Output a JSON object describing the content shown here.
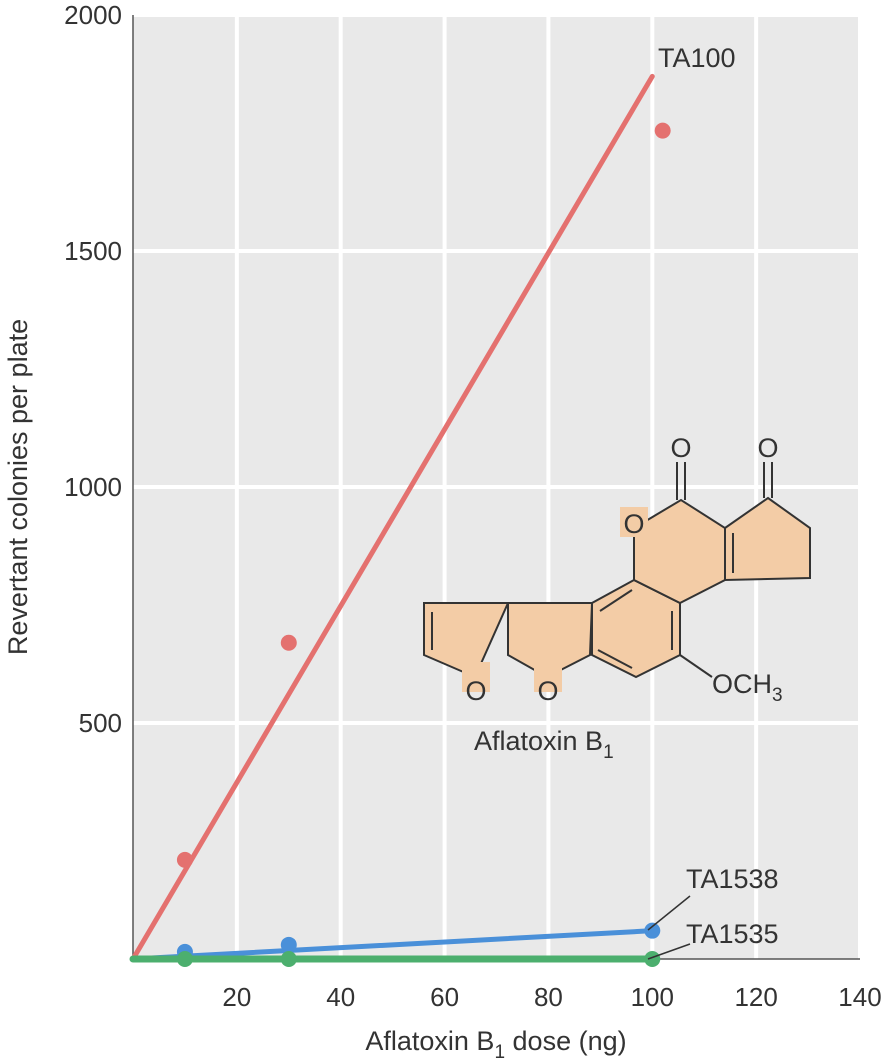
{
  "chart_data": {
    "type": "scatter",
    "xlabel": "Aflatoxin B",
    "xlabel_subscript": "1",
    "xlabel_suffix": " dose (ng)",
    "ylabel": "Revertant colonies per plate",
    "xlim": [
      0,
      140
    ],
    "ylim": [
      0,
      2000
    ],
    "x_ticks": [
      20,
      40,
      60,
      80,
      100,
      120,
      140
    ],
    "y_ticks": [
      500,
      1000,
      1500,
      2000
    ],
    "grid": true,
    "series": [
      {
        "name": "TA100",
        "color": "#e4716f",
        "points": [
          [
            10,
            210
          ],
          [
            30,
            670
          ],
          [
            102,
            1755
          ]
        ],
        "fit_line": [
          [
            0,
            0
          ],
          [
            100,
            1870
          ]
        ]
      },
      {
        "name": "TA1538",
        "color": "#4a90d9",
        "points": [
          [
            10,
            15
          ],
          [
            30,
            30
          ],
          [
            100,
            60
          ]
        ],
        "fit_line": [
          [
            0,
            0
          ],
          [
            100,
            60
          ]
        ]
      },
      {
        "name": "TA1535",
        "color": "#4caf6e",
        "points": [
          [
            10,
            0
          ],
          [
            30,
            0
          ],
          [
            100,
            0
          ]
        ],
        "fit_line": [
          [
            0,
            0
          ],
          [
            100,
            0
          ]
        ]
      }
    ],
    "inset": {
      "name": "Aflatoxin B",
      "name_subscript": "1",
      "atoms": {
        "carbonyl_o_1": "O",
        "carbonyl_o_2": "O",
        "ring_o_lactone": "O",
        "ring_o_furan_1": "O",
        "ring_o_furan_2": "O",
        "methoxy": "OCH",
        "methoxy_subscript": "3"
      },
      "fill_color": "#f3cca6"
    }
  }
}
